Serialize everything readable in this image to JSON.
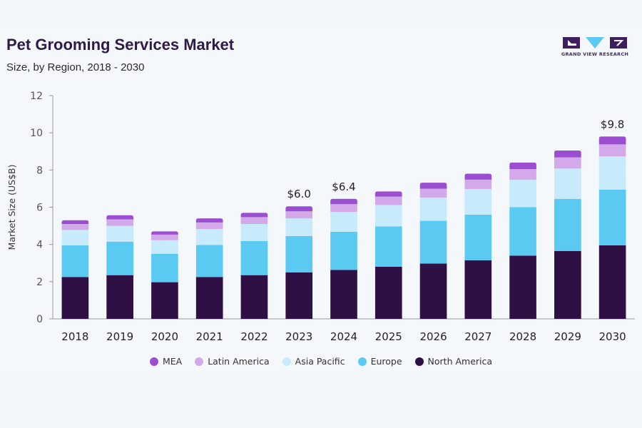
{
  "header": {
    "title": "Pet Grooming Services Market",
    "subtitle": "Size, by Region, 2018 - 2030",
    "logo_text": "GRAND VIEW RESEARCH"
  },
  "colors": {
    "MEA": "#9b4fd0",
    "Latin America": "#d3a9ea",
    "Asia Pacific": "#c7ebfb",
    "Europe": "#5bcaf2",
    "North America": "#2f1045",
    "axis": "#999999",
    "title": "#2e1a47"
  },
  "chart_data": {
    "type": "bar",
    "stacked": true,
    "title": "Pet Grooming Services Market",
    "subtitle": "Size, by Region, 2018 - 2030",
    "xlabel": "",
    "ylabel": "Market Size (US$B)",
    "ylim": [
      0,
      12
    ],
    "yticks": [
      0,
      2,
      4,
      6,
      8,
      10,
      12
    ],
    "grid": false,
    "legend_position": "bottom",
    "categories": [
      "2018",
      "2019",
      "2020",
      "2021",
      "2022",
      "2023",
      "2024",
      "2025",
      "2026",
      "2027",
      "2028",
      "2029",
      "2030"
    ],
    "series": [
      {
        "name": "North America",
        "values": [
          2.25,
          2.35,
          1.97,
          2.25,
          2.35,
          2.5,
          2.63,
          2.8,
          2.97,
          3.15,
          3.4,
          3.65,
          3.95
        ]
      },
      {
        "name": "Europe",
        "values": [
          1.7,
          1.8,
          1.53,
          1.72,
          1.83,
          1.95,
          2.05,
          2.17,
          2.3,
          2.45,
          2.6,
          2.8,
          3.0
        ]
      },
      {
        "name": "Asia Pacific",
        "values": [
          0.83,
          0.85,
          0.73,
          0.86,
          0.92,
          0.95,
          1.07,
          1.15,
          1.25,
          1.38,
          1.47,
          1.63,
          1.78
        ]
      },
      {
        "name": "Latin America",
        "values": [
          0.32,
          0.35,
          0.3,
          0.35,
          0.37,
          0.38,
          0.42,
          0.45,
          0.47,
          0.5,
          0.58,
          0.6,
          0.65
        ]
      },
      {
        "name": "MEA",
        "values": [
          0.2,
          0.22,
          0.17,
          0.22,
          0.23,
          0.27,
          0.28,
          0.28,
          0.33,
          0.32,
          0.35,
          0.37,
          0.42
        ]
      }
    ],
    "annotations": [
      {
        "category": "2023",
        "text": "$6.0"
      },
      {
        "category": "2024",
        "text": "$6.4"
      },
      {
        "category": "2030",
        "text": "$9.8"
      }
    ],
    "legend": [
      "MEA",
      "Latin America",
      "Asia Pacific",
      "Europe",
      "North America"
    ]
  }
}
